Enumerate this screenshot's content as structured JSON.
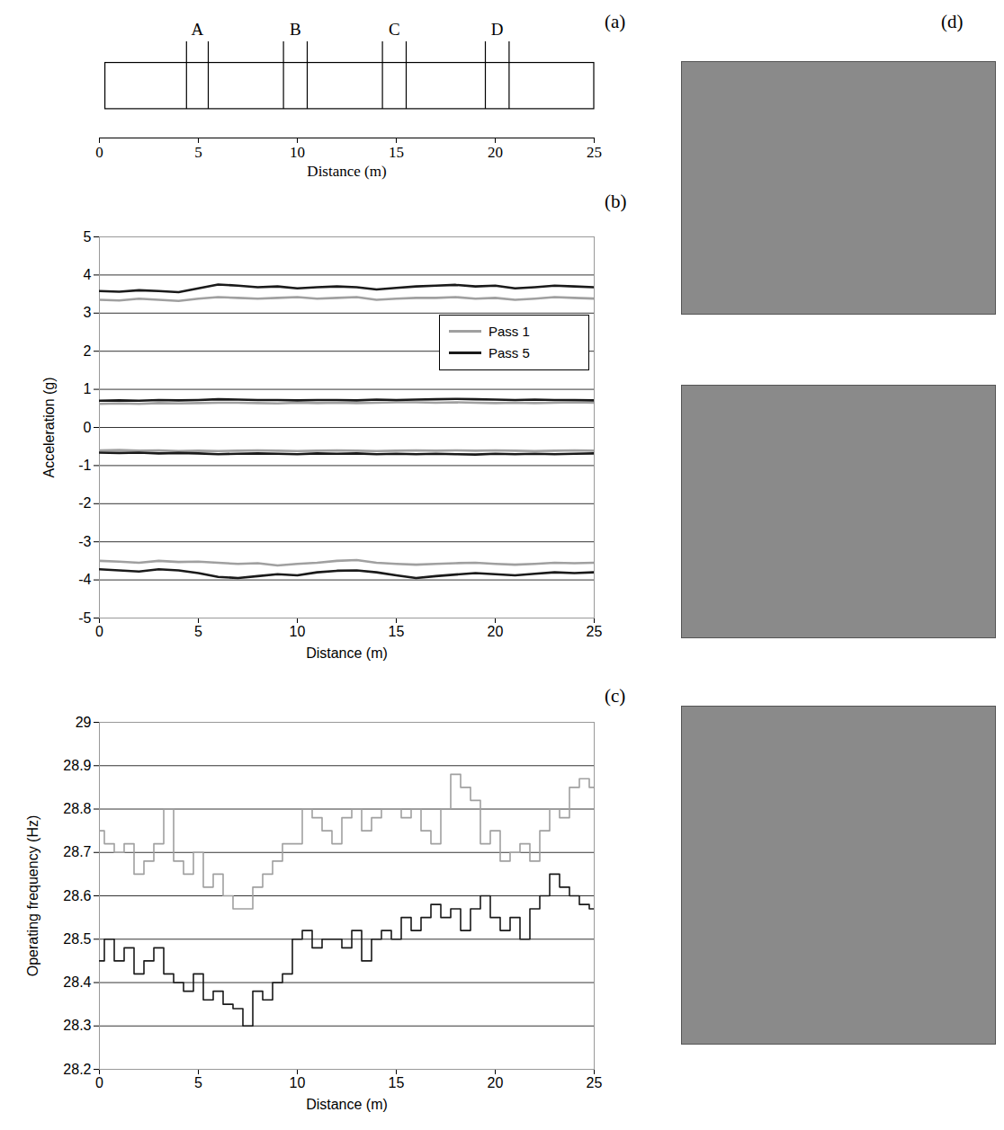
{
  "chart_data": [
    {
      "panel": "(a)",
      "type": "schematic",
      "x_label": "Distance (m)",
      "xlim": [
        0,
        25
      ],
      "xticks": [
        0,
        5,
        10,
        15,
        20,
        25
      ],
      "strip": [
        0.3,
        25
      ],
      "sections": [
        {
          "name": "A",
          "start": 4.4,
          "end": 5.5
        },
        {
          "name": "B",
          "start": 9.3,
          "end": 10.5
        },
        {
          "name": "C",
          "start": 14.3,
          "end": 15.5
        },
        {
          "name": "D",
          "start": 19.5,
          "end": 20.7
        }
      ]
    },
    {
      "panel": "(b)",
      "type": "line",
      "x_label": "Distance (m)",
      "y_label": "Acceleration (g)",
      "x": [
        0,
        1,
        2,
        3,
        4,
        5,
        6,
        7,
        8,
        9,
        10,
        11,
        12,
        13,
        14,
        15,
        16,
        17,
        18,
        19,
        20,
        21,
        22,
        23,
        24,
        25
      ],
      "series": [
        {
          "name": "Pass 1",
          "color": "#a0a0a0",
          "values": [
            3.35,
            3.33,
            3.38,
            3.35,
            3.32,
            3.38,
            3.42,
            3.4,
            3.38,
            3.4,
            3.42,
            3.38,
            3.4,
            3.42,
            3.35,
            3.38,
            3.4,
            3.4,
            3.42,
            3.38,
            3.4,
            3.35,
            3.38,
            3.42,
            3.4,
            3.38
          ]
        },
        {
          "name": "Pass 1",
          "color": "#a0a0a0",
          "values": [
            0.62,
            0.63,
            0.62,
            0.64,
            0.63,
            0.64,
            0.65,
            0.65,
            0.64,
            0.63,
            0.65,
            0.64,
            0.65,
            0.64,
            0.65,
            0.66,
            0.66,
            0.65,
            0.66,
            0.65,
            0.64,
            0.65,
            0.64,
            0.65,
            0.66,
            0.65
          ]
        },
        {
          "name": "Pass 1",
          "color": "#a0a0a0",
          "values": [
            -0.6,
            -0.59,
            -0.61,
            -0.6,
            -0.62,
            -0.61,
            -0.62,
            -0.61,
            -0.6,
            -0.61,
            -0.62,
            -0.61,
            -0.6,
            -0.61,
            -0.62,
            -0.61,
            -0.6,
            -0.61,
            -0.6,
            -0.61,
            -0.6,
            -0.61,
            -0.62,
            -0.61,
            -0.6,
            -0.61
          ]
        },
        {
          "name": "Pass 1",
          "color": "#a0a0a0",
          "values": [
            -3.5,
            -3.52,
            -3.55,
            -3.5,
            -3.53,
            -3.52,
            -3.55,
            -3.58,
            -3.56,
            -3.62,
            -3.58,
            -3.55,
            -3.5,
            -3.48,
            -3.55,
            -3.58,
            -3.6,
            -3.58,
            -3.56,
            -3.55,
            -3.58,
            -3.6,
            -3.58,
            -3.55,
            -3.56,
            -3.55
          ]
        },
        {
          "name": "Pass 5",
          "color": "#1a1a1a",
          "values": [
            3.58,
            3.56,
            3.6,
            3.58,
            3.55,
            3.65,
            3.75,
            3.72,
            3.68,
            3.7,
            3.65,
            3.68,
            3.7,
            3.68,
            3.62,
            3.66,
            3.7,
            3.72,
            3.74,
            3.7,
            3.72,
            3.65,
            3.68,
            3.72,
            3.7,
            3.68
          ]
        },
        {
          "name": "Pass 5",
          "color": "#1a1a1a",
          "values": [
            0.7,
            0.71,
            0.7,
            0.72,
            0.71,
            0.72,
            0.74,
            0.73,
            0.72,
            0.72,
            0.71,
            0.72,
            0.72,
            0.71,
            0.73,
            0.72,
            0.73,
            0.74,
            0.75,
            0.74,
            0.73,
            0.72,
            0.73,
            0.72,
            0.72,
            0.71
          ]
        },
        {
          "name": "Pass 5",
          "color": "#1a1a1a",
          "values": [
            -0.66,
            -0.67,
            -0.66,
            -0.68,
            -0.67,
            -0.68,
            -0.7,
            -0.69,
            -0.68,
            -0.69,
            -0.7,
            -0.68,
            -0.69,
            -0.68,
            -0.7,
            -0.69,
            -0.7,
            -0.69,
            -0.7,
            -0.71,
            -0.69,
            -0.7,
            -0.69,
            -0.7,
            -0.69,
            -0.68
          ]
        },
        {
          "name": "Pass 5",
          "color": "#1a1a1a",
          "values": [
            -3.72,
            -3.75,
            -3.78,
            -3.72,
            -3.75,
            -3.82,
            -3.92,
            -3.95,
            -3.9,
            -3.85,
            -3.88,
            -3.8,
            -3.76,
            -3.75,
            -3.8,
            -3.88,
            -3.95,
            -3.9,
            -3.86,
            -3.82,
            -3.85,
            -3.88,
            -3.84,
            -3.8,
            -3.82,
            -3.8
          ]
        }
      ],
      "xlim": [
        0,
        25
      ],
      "xticks": [
        0,
        5,
        10,
        15,
        20,
        25
      ],
      "ylim": [
        -5,
        5
      ],
      "yticks": [
        -5,
        -4,
        -3,
        -2,
        -1,
        0,
        1,
        2,
        3,
        4,
        5
      ],
      "grid": true,
      "legend": "right"
    },
    {
      "panel": "(c)",
      "type": "line",
      "x_label": "Distance (m)",
      "y_label": "Operating frequency (Hz)",
      "line_style": "steps",
      "x": [
        0,
        0.5,
        1,
        1.5,
        2,
        2.5,
        3,
        3.5,
        4,
        4.5,
        5,
        5.5,
        6,
        6.5,
        7,
        7.5,
        8,
        8.5,
        9,
        9.5,
        10,
        10.5,
        11,
        11.5,
        12,
        12.5,
        13,
        13.5,
        14,
        14.5,
        15,
        15.5,
        16,
        16.5,
        17,
        17.5,
        18,
        18.5,
        19,
        19.5,
        20,
        20.5,
        21,
        21.5,
        22,
        22.5,
        23,
        23.5,
        24,
        24.5,
        25
      ],
      "series": [
        {
          "name": "Pass 1",
          "color": "#a0a0a0",
          "values": [
            28.75,
            28.72,
            28.7,
            28.72,
            28.65,
            28.68,
            28.72,
            28.8,
            28.68,
            28.65,
            28.7,
            28.62,
            28.65,
            28.6,
            28.57,
            28.57,
            28.62,
            28.65,
            28.68,
            28.72,
            28.72,
            28.8,
            28.78,
            28.75,
            28.72,
            28.78,
            28.8,
            28.75,
            28.78,
            28.8,
            28.8,
            28.78,
            28.8,
            28.75,
            28.72,
            28.8,
            28.88,
            28.85,
            28.82,
            28.72,
            28.75,
            28.68,
            28.7,
            28.72,
            28.68,
            28.75,
            28.8,
            28.78,
            28.85,
            28.87,
            28.85
          ]
        },
        {
          "name": "Pass 5",
          "color": "#1a1a1a",
          "values": [
            28.45,
            28.5,
            28.45,
            28.48,
            28.42,
            28.45,
            28.48,
            28.42,
            28.4,
            28.38,
            28.42,
            28.36,
            28.38,
            28.35,
            28.34,
            28.3,
            28.38,
            28.36,
            28.4,
            28.42,
            28.5,
            28.52,
            28.48,
            28.5,
            28.5,
            28.48,
            28.52,
            28.45,
            28.5,
            28.52,
            28.5,
            28.55,
            28.52,
            28.55,
            28.58,
            28.55,
            28.57,
            28.52,
            28.57,
            28.6,
            28.55,
            28.52,
            28.55,
            28.5,
            28.57,
            28.6,
            28.65,
            28.62,
            28.6,
            28.58,
            28.57
          ]
        }
      ],
      "xlim": [
        0,
        25
      ],
      "xticks": [
        0,
        5,
        10,
        15,
        20,
        25
      ],
      "ylim": [
        28.2,
        29
      ],
      "yticks": [
        28.2,
        28.3,
        28.4,
        28.5,
        28.6,
        28.7,
        28.8,
        28.9,
        29
      ],
      "grid": true
    },
    {
      "panel": "(d)",
      "type": "photographs",
      "count": 3
    }
  ]
}
